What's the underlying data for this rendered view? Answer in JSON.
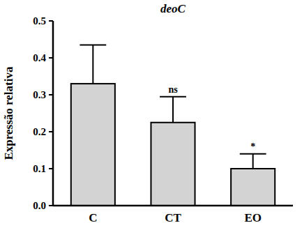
{
  "chart_data": {
    "type": "bar",
    "title": "deoC",
    "y_label": "Expressão relativa",
    "categories": [
      "C",
      "CT",
      "EO"
    ],
    "values": [
      0.33,
      0.225,
      0.1
    ],
    "errors": [
      0.105,
      0.07,
      0.04
    ],
    "color": "#d3d3d3",
    "ylim": [
      0,
      0.5
    ],
    "yticks": [
      {
        "value": 0,
        "label": "0.0"
      },
      0.1,
      0.2,
      0.3,
      0.4,
      0.5
    ],
    "grid": false,
    "annotations": [
      {
        "category": "CT",
        "text": "ns"
      },
      {
        "category": "EO",
        "text": "*"
      }
    ]
  }
}
